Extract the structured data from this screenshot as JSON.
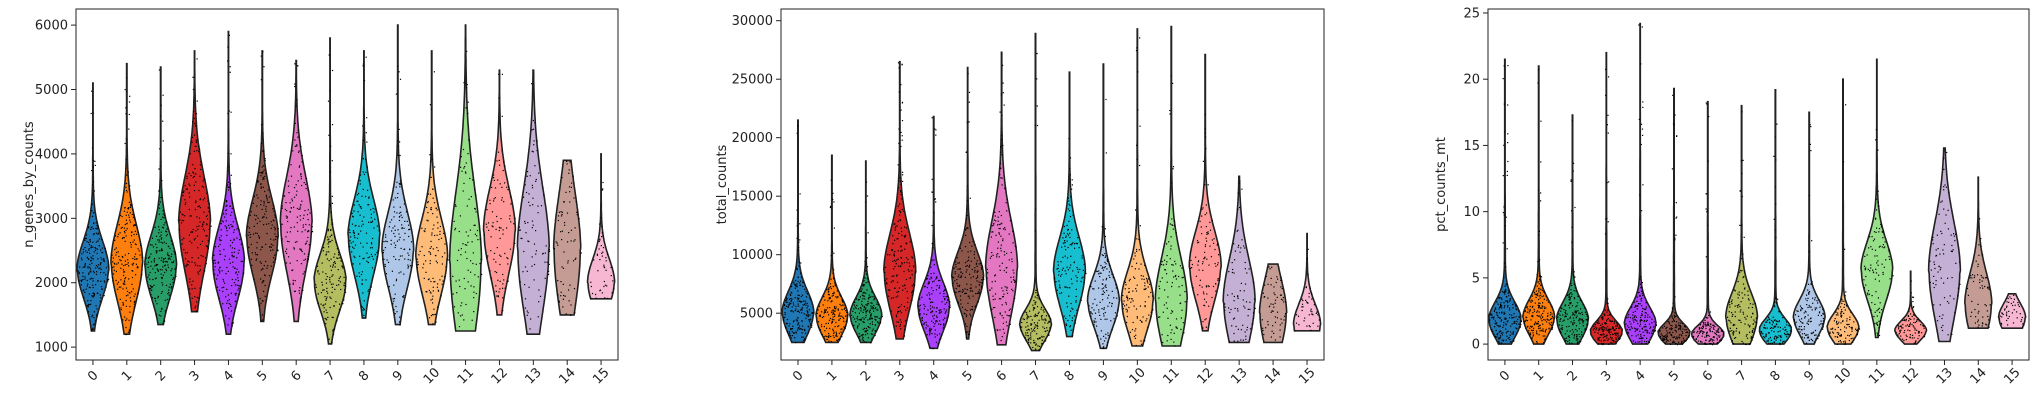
{
  "chart_data": [
    {
      "type": "violin",
      "ylabel": "n_genes_by_counts",
      "ylim": [
        800,
        6250
      ],
      "yticks": [
        1000,
        2000,
        3000,
        4000,
        5000,
        6000
      ],
      "categories": [
        "0",
        "1",
        "2",
        "3",
        "4",
        "5",
        "6",
        "7",
        "8",
        "9",
        "10",
        "11",
        "12",
        "13",
        "14",
        "15"
      ],
      "colors": [
        "#1f77b4",
        "#ff7f0e",
        "#279e68",
        "#d62728",
        "#aa40fc",
        "#8c564b",
        "#e377c2",
        "#b5bd61",
        "#17becf",
        "#aec7e8",
        "#ffbb78",
        "#98df8a",
        "#ff9896",
        "#c5b0d5",
        "#c49c94",
        "#f7b6d2"
      ],
      "series": [
        {
          "min": 1250,
          "q1": 1900,
          "median": 2200,
          "q3": 2500,
          "max": 5100
        },
        {
          "min": 1200,
          "q1": 1900,
          "median": 2300,
          "q3": 2700,
          "max": 5400
        },
        {
          "min": 1350,
          "q1": 1950,
          "median": 2250,
          "q3": 2600,
          "max": 5350
        },
        {
          "min": 1550,
          "q1": 2400,
          "median": 2900,
          "q3": 3400,
          "max": 5600
        },
        {
          "min": 1200,
          "q1": 1950,
          "median": 2300,
          "q3": 2700,
          "max": 5900
        },
        {
          "min": 1400,
          "q1": 2300,
          "median": 2700,
          "q3": 3100,
          "max": 5600
        },
        {
          "min": 1400,
          "q1": 2400,
          "median": 2900,
          "q3": 3400,
          "max": 5450
        },
        {
          "min": 1050,
          "q1": 1700,
          "median": 2000,
          "q3": 2300,
          "max": 5800
        },
        {
          "min": 1450,
          "q1": 2300,
          "median": 2700,
          "q3": 3100,
          "max": 5600
        },
        {
          "min": 1350,
          "q1": 2100,
          "median": 2500,
          "q3": 2900,
          "max": 6000
        },
        {
          "min": 1350,
          "q1": 2000,
          "median": 2400,
          "q3": 2800,
          "max": 5600
        },
        {
          "min": 1250,
          "q1": 1800,
          "median": 2300,
          "q3": 3300,
          "max": 6000
        },
        {
          "min": 1500,
          "q1": 2300,
          "median": 2800,
          "q3": 3200,
          "max": 5300
        },
        {
          "min": 1200,
          "q1": 1900,
          "median": 2500,
          "q3": 3200,
          "max": 5300
        },
        {
          "min": 1500,
          "q1": 2000,
          "median": 2500,
          "q3": 3200,
          "max": 3900
        },
        {
          "min": 1750,
          "q1": 1800,
          "median": 2000,
          "q3": 2300,
          "max": 4000
        }
      ]
    },
    {
      "type": "violin",
      "ylabel": "total_counts",
      "ylim": [
        1000,
        31000
      ],
      "yticks": [
        5000,
        10000,
        15000,
        20000,
        25000,
        30000
      ],
      "categories": [
        "0",
        "1",
        "2",
        "3",
        "4",
        "5",
        "6",
        "7",
        "8",
        "9",
        "10",
        "11",
        "12",
        "13",
        "14",
        "15"
      ],
      "colors": [
        "#1f77b4",
        "#ff7f0e",
        "#279e68",
        "#d62728",
        "#aa40fc",
        "#8c564b",
        "#e377c2",
        "#b5bd61",
        "#17becf",
        "#aec7e8",
        "#ffbb78",
        "#98df8a",
        "#ff9896",
        "#c5b0d5",
        "#c49c94",
        "#f7b6d2"
      ],
      "series": [
        {
          "min": 2500,
          "q1": 4000,
          "median": 5000,
          "q3": 6500,
          "max": 21500
        },
        {
          "min": 2500,
          "q1": 3800,
          "median": 4700,
          "q3": 6000,
          "max": 18500
        },
        {
          "min": 2500,
          "q1": 3900,
          "median": 4800,
          "q3": 6000,
          "max": 18000
        },
        {
          "min": 2800,
          "q1": 6500,
          "median": 8500,
          "q3": 11000,
          "max": 26500
        },
        {
          "min": 2000,
          "q1": 4200,
          "median": 5500,
          "q3": 7000,
          "max": 21800
        },
        {
          "min": 2800,
          "q1": 6500,
          "median": 8000,
          "q3": 9500,
          "max": 26000
        },
        {
          "min": 2300,
          "q1": 6500,
          "median": 8800,
          "q3": 12000,
          "max": 27300
        },
        {
          "min": 1800,
          "q1": 3200,
          "median": 4000,
          "q3": 5000,
          "max": 28900
        },
        {
          "min": 3000,
          "q1": 6500,
          "median": 8500,
          "q3": 10500,
          "max": 25600
        },
        {
          "min": 2000,
          "q1": 4500,
          "median": 6000,
          "q3": 7500,
          "max": 26300
        },
        {
          "min": 2200,
          "q1": 4500,
          "median": 6000,
          "q3": 8000,
          "max": 29300
        },
        {
          "min": 2200,
          "q1": 4000,
          "median": 6000,
          "q3": 9000,
          "max": 29500
        },
        {
          "min": 3500,
          "q1": 7000,
          "median": 9000,
          "q3": 11000,
          "max": 27100
        },
        {
          "min": 2500,
          "q1": 4000,
          "median": 6000,
          "q3": 9000,
          "max": 16700
        },
        {
          "min": 2500,
          "q1": 3500,
          "median": 5000,
          "q3": 7500,
          "max": 9200
        },
        {
          "min": 3500,
          "q1": 3600,
          "median": 4000,
          "q3": 6000,
          "max": 11800
        }
      ]
    },
    {
      "type": "violin",
      "ylabel": "pct_counts_mt",
      "ylim": [
        -1.2,
        25.3
      ],
      "yticks": [
        0,
        5,
        10,
        15,
        20,
        25
      ],
      "categories": [
        "0",
        "1",
        "2",
        "3",
        "4",
        "5",
        "6",
        "7",
        "8",
        "9",
        "10",
        "11",
        "12",
        "13",
        "14",
        "15"
      ],
      "colors": [
        "#1f77b4",
        "#ff7f0e",
        "#279e68",
        "#d62728",
        "#aa40fc",
        "#8c564b",
        "#e377c2",
        "#b5bd61",
        "#17becf",
        "#aec7e8",
        "#ffbb78",
        "#98df8a",
        "#ff9896",
        "#c5b0d5",
        "#c49c94",
        "#f7b6d2"
      ],
      "series": [
        {
          "min": 0,
          "q1": 1.0,
          "median": 1.8,
          "q3": 2.8,
          "max": 21.5
        },
        {
          "min": 0,
          "q1": 1.2,
          "median": 2.0,
          "q3": 3.0,
          "max": 21.0
        },
        {
          "min": 0,
          "q1": 1.0,
          "median": 1.8,
          "q3": 2.8,
          "max": 17.3
        },
        {
          "min": 0,
          "q1": 0.5,
          "median": 0.9,
          "q3": 1.5,
          "max": 22.0
        },
        {
          "min": 0,
          "q1": 0.8,
          "median": 1.5,
          "q3": 2.5,
          "max": 24.2
        },
        {
          "min": 0,
          "q1": 0.4,
          "median": 0.8,
          "q3": 1.3,
          "max": 19.3
        },
        {
          "min": 0,
          "q1": 0.3,
          "median": 0.7,
          "q3": 1.2,
          "max": 18.3
        },
        {
          "min": 0,
          "q1": 1.0,
          "median": 2.0,
          "q3": 3.5,
          "max": 18.0
        },
        {
          "min": 0,
          "q1": 0.6,
          "median": 1.0,
          "q3": 1.8,
          "max": 19.2
        },
        {
          "min": 0,
          "q1": 1.2,
          "median": 2.0,
          "q3": 3.0,
          "max": 17.5
        },
        {
          "min": 0,
          "q1": 0.6,
          "median": 1.2,
          "q3": 2.0,
          "max": 20.0
        },
        {
          "min": 0.5,
          "q1": 4.0,
          "median": 5.5,
          "q3": 7.0,
          "max": 21.5
        },
        {
          "min": 0,
          "q1": 0.6,
          "median": 1.0,
          "q3": 1.6,
          "max": 5.5
        },
        {
          "min": 0.2,
          "q1": 3.0,
          "median": 5.5,
          "q3": 8.0,
          "max": 14.8
        },
        {
          "min": 1.2,
          "q1": 1.8,
          "median": 3.0,
          "q3": 5.0,
          "max": 12.6
        },
        {
          "min": 1.2,
          "q1": 1.5,
          "median": 2.0,
          "q3": 3.0,
          "max": 3.8
        }
      ]
    }
  ]
}
